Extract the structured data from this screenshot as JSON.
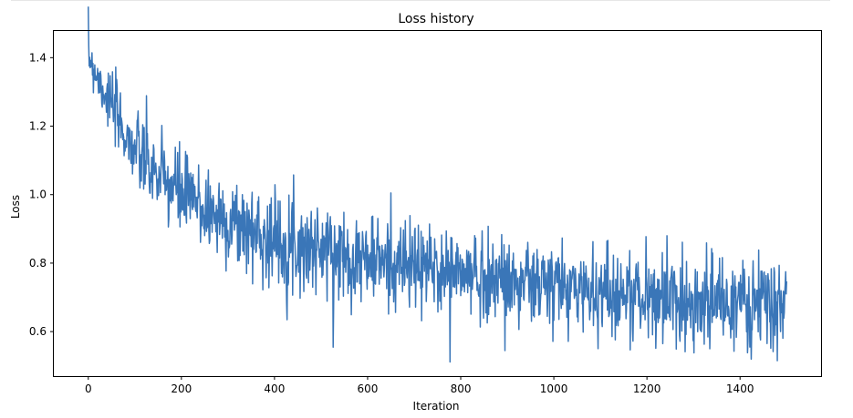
{
  "chart_data": {
    "type": "line",
    "title": "Loss history",
    "xlabel": "Iteration",
    "ylabel": "Loss",
    "xlim": [
      -74,
      1574
    ],
    "ylim": [
      0.47,
      1.478
    ],
    "x_ticks": [
      0,
      200,
      400,
      600,
      800,
      1000,
      1200,
      1400
    ],
    "y_ticks": [
      0.6,
      0.8,
      1.0,
      1.2,
      1.4
    ],
    "y_tick_labels": [
      "0.6",
      "0.8",
      "1.0",
      "1.2",
      "1.4"
    ],
    "grid": false,
    "series": [
      {
        "color": "#3a76b8",
        "x_start": 0,
        "x_end": 1500,
        "trend": {
          "x": [
            0,
            25,
            50,
            75,
            100,
            150,
            200,
            300,
            400,
            500,
            600,
            700,
            800,
            900,
            1000,
            1100,
            1200,
            1300,
            1400,
            1500
          ],
          "y": [
            1.41,
            1.33,
            1.26,
            1.19,
            1.13,
            1.05,
            1.0,
            0.92,
            0.87,
            0.84,
            0.81,
            0.79,
            0.77,
            0.75,
            0.73,
            0.72,
            0.7,
            0.69,
            0.68,
            0.67
          ]
        },
        "noise_amplitude": [
          0.02,
          0.11
        ],
        "min_value": 0.515,
        "min_at": 1480,
        "max_value": 1.435
      }
    ]
  }
}
